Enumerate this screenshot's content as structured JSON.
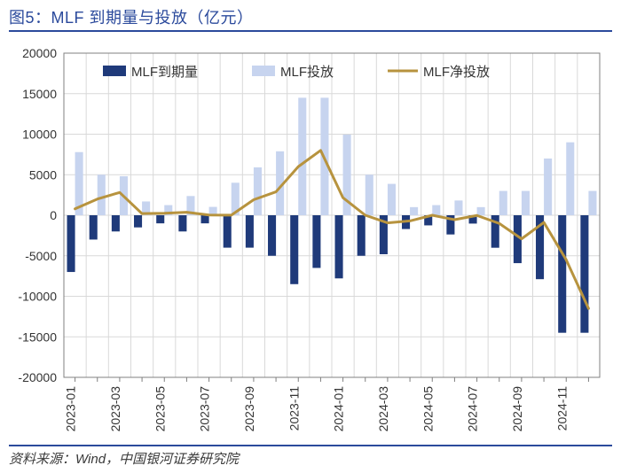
{
  "title": "图5：MLF 到期量与投放（亿元）",
  "source": "资料来源：Wind，中国银河证券研究院",
  "chart": {
    "type": "bar+line",
    "background_color": "#ffffff",
    "grid_color": "#d9d9d9",
    "axis_color": "#808080",
    "title_color": "#2b4a9c",
    "rule_color": "#2b4a9c",
    "label_color": "#333333",
    "y": {
      "min": -20000,
      "max": 20000,
      "step": 5000,
      "label_fontsize": 14
    },
    "x": {
      "tick_every": 2,
      "tick_label_rotation": -90,
      "label_fontsize": 14,
      "categories": [
        "2023-01",
        "2023-02",
        "2023-03",
        "2023-04",
        "2023-05",
        "2023-06",
        "2023-07",
        "2023-08",
        "2023-09",
        "2023-10",
        "2023-11",
        "2023-12",
        "2024-01",
        "2024-02",
        "2024-03",
        "2024-04",
        "2024-05",
        "2024-06",
        "2024-07",
        "2024-08",
        "2024-09",
        "2024-10",
        "2024-11",
        "2024-12"
      ]
    },
    "series": {
      "mlf_maturity": {
        "label": "MLF到期量",
        "type": "bar",
        "color": "#1f3a7a",
        "bar_width": 0.36,
        "values": [
          -7000,
          -3000,
          -2000,
          -1500,
          -1000,
          -2000,
          -1000,
          -4000,
          -4000,
          -5000,
          -8500,
          -6500,
          -7790,
          -5000,
          -4810,
          -1700,
          -1250,
          -2370,
          -1030,
          -4010,
          -5910,
          -7890,
          -14500,
          -14500
        ]
      },
      "mlf_injection": {
        "label": "MLF投放",
        "type": "bar",
        "color": "#c7d4ef",
        "bar_width": 0.36,
        "values": [
          7790,
          5000,
          4810,
          1700,
          1250,
          2370,
          1030,
          4010,
          5910,
          7890,
          14500,
          14500,
          9950,
          5000,
          3870,
          1000,
          1250,
          1820,
          1000,
          3000,
          3000,
          7000,
          9000,
          3000
        ]
      },
      "mlf_net": {
        "label": "MLF净投放",
        "type": "line",
        "color": "#b7933e",
        "line_width": 3,
        "values": [
          790,
          2000,
          2810,
          200,
          250,
          370,
          30,
          10,
          1910,
          2890,
          6000,
          8000,
          2160,
          0,
          -940,
          -700,
          0,
          -550,
          -30,
          -1010,
          -2910,
          -890,
          -5500,
          -11500
        ]
      }
    },
    "legend": {
      "position": "top-inside",
      "items": [
        {
          "key": "mlf_maturity",
          "swatch": "bar-dark"
        },
        {
          "key": "mlf_injection",
          "swatch": "bar-light"
        },
        {
          "key": "mlf_net",
          "swatch": "line"
        }
      ]
    }
  }
}
